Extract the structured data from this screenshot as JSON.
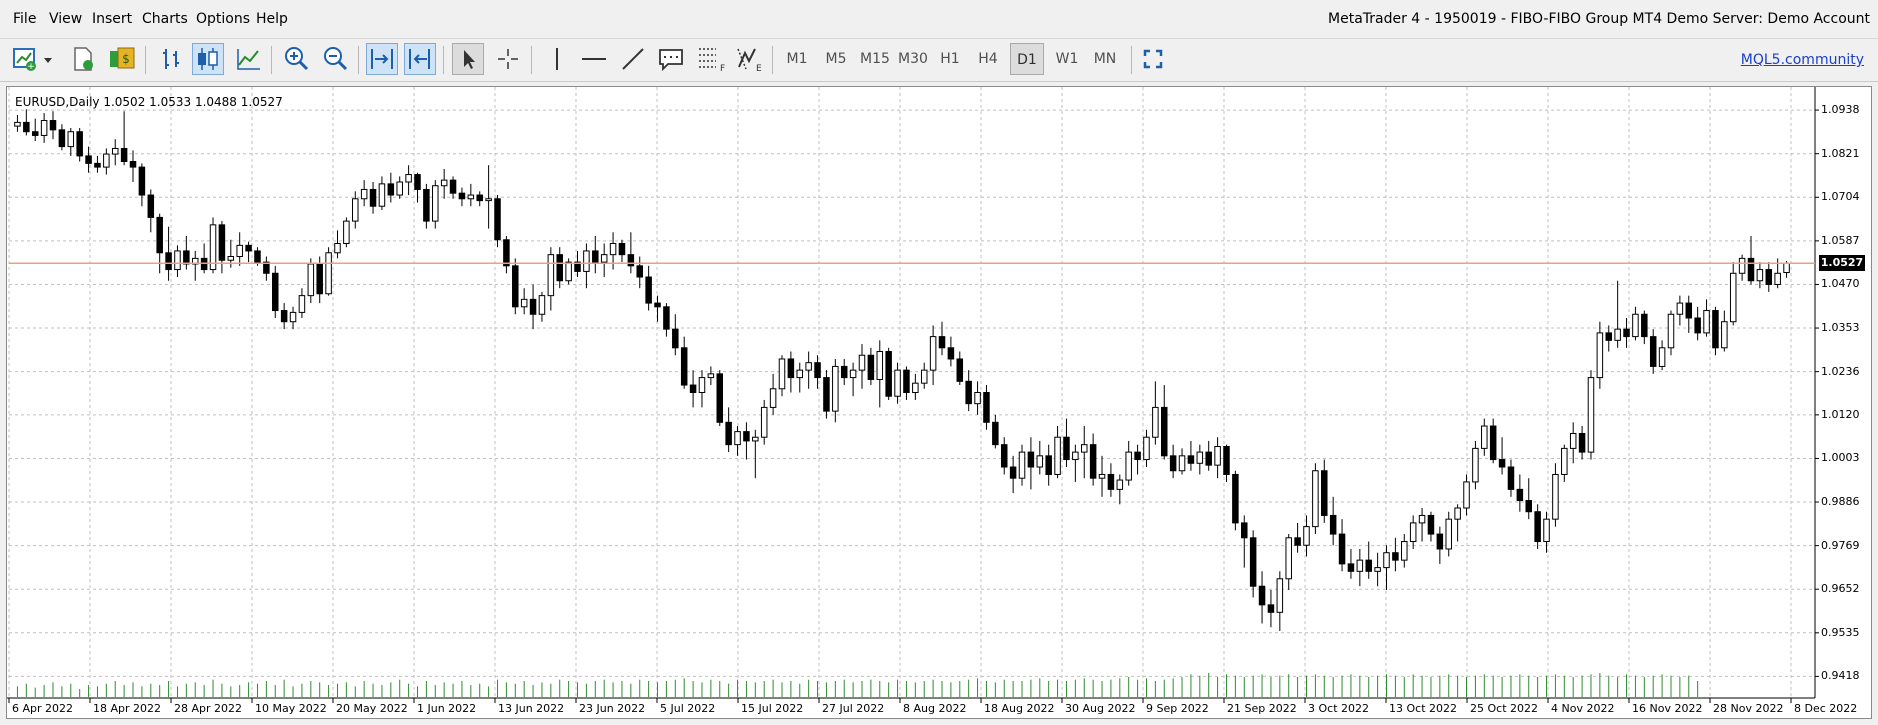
{
  "menu": {
    "items": [
      "File",
      "View",
      "Insert",
      "Charts",
      "Options",
      "Help"
    ],
    "title": "MetaTrader 4 - 1950019 - FIBO-FIBO Group MT4 Demo Server: Demo Account"
  },
  "toolbar": {
    "timeframes": [
      "M1",
      "M5",
      "M15",
      "M30",
      "H1",
      "H4",
      "D1",
      "W1",
      "MN"
    ],
    "active_timeframe": "D1",
    "link": "MQL5.community"
  },
  "chart": {
    "ticker": "EURUSD,Daily  1.0502 1.0533 1.0488 1.0527",
    "current_price": "1.0527",
    "price_levels": [
      "1.0938",
      "1.0821",
      "1.0704",
      "1.0587",
      "1.0470",
      "1.0353",
      "1.0236",
      "1.0120",
      "1.0003",
      "0.9886",
      "0.9769",
      "0.9652",
      "0.9535",
      "0.9418"
    ],
    "date_labels": [
      "6 Apr 2022",
      "18 Apr 2022",
      "28 Apr 2022",
      "10 May 2022",
      "20 May 2022",
      "1 Jun 2022",
      "13 Jun 2022",
      "23 Jun 2022",
      "5 Jul 2022",
      "15 Jul 2022",
      "27 Jul 2022",
      "8 Aug 2022",
      "18 Aug 2022",
      "30 Aug 2022",
      "9 Sep 2022",
      "21 Sep 2022",
      "3 Oct 2022",
      "13 Oct 2022",
      "25 Oct 2022",
      "4 Nov 2022",
      "16 Nov 2022",
      "28 Nov 2022",
      "8 Dec 2022"
    ],
    "colors": {
      "up": "#ffffff",
      "down": "#000000",
      "line_level": "#e8a088",
      "volume": "#2e8b2e",
      "grid": "#c0c0c0"
    }
  },
  "chart_data": {
    "type": "candlestick",
    "title": "EURUSD,Daily",
    "ylim": [
      0.936,
      1.1
    ],
    "last_bar": {
      "open": 1.0502,
      "high": 1.0533,
      "low": 1.0488,
      "close": 1.0527
    },
    "ohlc": [
      [
        1.0895,
        1.0925,
        1.088,
        1.0905
      ],
      [
        1.0905,
        1.094,
        1.087,
        1.088
      ],
      [
        1.088,
        1.0915,
        1.0855,
        1.087
      ],
      [
        1.087,
        1.093,
        1.085,
        1.091
      ],
      [
        1.091,
        1.0935,
        1.086,
        1.0885
      ],
      [
        1.0885,
        1.09,
        1.083,
        1.084
      ],
      [
        1.084,
        1.089,
        1.0815,
        1.088
      ],
      [
        1.088,
        1.089,
        1.08,
        1.0815
      ],
      [
        1.0815,
        1.084,
        1.077,
        1.0795
      ],
      [
        1.0795,
        1.0815,
        1.077,
        1.0785
      ],
      [
        1.0785,
        1.0835,
        1.0765,
        1.082
      ],
      [
        1.082,
        1.086,
        1.079,
        1.0835
      ],
      [
        1.0835,
        1.0935,
        1.079,
        1.08
      ],
      [
        1.08,
        1.083,
        1.0745,
        1.0785
      ],
      [
        1.0785,
        1.0795,
        1.068,
        1.071
      ],
      [
        1.071,
        1.0725,
        1.061,
        1.065
      ],
      [
        1.065,
        1.066,
        1.05,
        1.0555
      ],
      [
        1.0555,
        1.0625,
        1.048,
        1.051
      ],
      [
        1.051,
        1.0575,
        1.049,
        1.056
      ],
      [
        1.056,
        1.06,
        1.051,
        1.0525
      ],
      [
        1.0525,
        1.056,
        1.048,
        1.054
      ],
      [
        1.054,
        1.058,
        1.05,
        1.051
      ],
      [
        1.051,
        1.065,
        1.05,
        1.063
      ],
      [
        1.063,
        1.064,
        1.05,
        1.0535
      ],
      [
        1.0535,
        1.059,
        1.0515,
        1.0545
      ],
      [
        1.0545,
        1.061,
        1.052,
        1.0575
      ],
      [
        1.0575,
        1.0585,
        1.053,
        1.056
      ],
      [
        1.056,
        1.057,
        1.052,
        1.053
      ],
      [
        1.053,
        1.0545,
        1.048,
        1.05
      ],
      [
        1.05,
        1.052,
        1.038,
        1.04
      ],
      [
        1.04,
        1.042,
        1.035,
        1.037
      ],
      [
        1.037,
        1.041,
        1.035,
        1.0395
      ],
      [
        1.0395,
        1.046,
        1.038,
        1.044
      ],
      [
        1.044,
        1.054,
        1.042,
        1.0525
      ],
      [
        1.0525,
        1.0545,
        1.042,
        1.0445
      ],
      [
        1.0445,
        1.057,
        1.044,
        1.0555
      ],
      [
        1.0555,
        1.0615,
        1.054,
        1.058
      ],
      [
        1.058,
        1.065,
        1.057,
        1.064
      ],
      [
        1.064,
        1.072,
        1.062,
        1.07
      ],
      [
        1.07,
        1.075,
        1.068,
        1.0725
      ],
      [
        1.0725,
        1.0745,
        1.066,
        1.068
      ],
      [
        1.068,
        1.076,
        1.067,
        1.074
      ],
      [
        1.074,
        1.077,
        1.069,
        1.071
      ],
      [
        1.071,
        1.076,
        1.07,
        1.0745
      ],
      [
        1.0745,
        1.079,
        1.071,
        1.0765
      ],
      [
        1.0765,
        1.077,
        1.069,
        1.0725
      ],
      [
        1.0725,
        1.074,
        1.062,
        1.064
      ],
      [
        1.064,
        1.075,
        1.062,
        1.0735
      ],
      [
        1.0735,
        1.078,
        1.07,
        1.075
      ],
      [
        1.075,
        1.076,
        1.07,
        1.0715
      ],
      [
        1.0715,
        1.073,
        1.068,
        1.07
      ],
      [
        1.07,
        1.074,
        1.068,
        1.071
      ],
      [
        1.071,
        1.072,
        1.068,
        1.0695
      ],
      [
        1.0695,
        1.079,
        1.062,
        1.07
      ],
      [
        1.07,
        1.071,
        1.057,
        1.059
      ],
      [
        1.059,
        1.06,
        1.05,
        1.052
      ],
      [
        1.052,
        1.054,
        1.039,
        1.041
      ],
      [
        1.041,
        1.046,
        1.039,
        1.043
      ],
      [
        1.043,
        1.047,
        1.035,
        1.039
      ],
      [
        1.039,
        1.045,
        1.037,
        1.044
      ],
      [
        1.044,
        1.057,
        1.04,
        1.055
      ],
      [
        1.055,
        1.057,
        1.046,
        1.048
      ],
      [
        1.048,
        1.054,
        1.047,
        1.053
      ],
      [
        1.053,
        1.056,
        1.049,
        1.0505
      ],
      [
        1.0505,
        1.058,
        1.046,
        1.056
      ],
      [
        1.056,
        1.06,
        1.05,
        1.053
      ],
      [
        1.053,
        1.058,
        1.049,
        1.055
      ],
      [
        1.055,
        1.061,
        1.051,
        1.058
      ],
      [
        1.058,
        1.059,
        1.053,
        1.055
      ],
      [
        1.055,
        1.061,
        1.05,
        1.052
      ],
      [
        1.052,
        1.0545,
        1.046,
        1.049
      ],
      [
        1.049,
        1.052,
        1.04,
        1.042
      ],
      [
        1.042,
        1.044,
        1.037,
        1.041
      ],
      [
        1.041,
        1.042,
        1.033,
        1.035
      ],
      [
        1.035,
        1.039,
        1.028,
        1.03
      ],
      [
        1.03,
        1.033,
        1.019,
        1.02
      ],
      [
        1.02,
        1.024,
        1.014,
        1.018
      ],
      [
        1.018,
        1.024,
        1.014,
        1.022
      ],
      [
        1.022,
        1.025,
        1.02,
        1.023
      ],
      [
        1.023,
        1.024,
        1.009,
        1.01
      ],
      [
        1.01,
        1.014,
        1.002,
        1.004
      ],
      [
        1.004,
        1.009,
        1.001,
        1.0075
      ],
      [
        1.0075,
        1.01,
        1.0,
        1.005
      ],
      [
        1.005,
        1.008,
        0.995,
        1.006
      ],
      [
        1.006,
        1.016,
        1.004,
        1.014
      ],
      [
        1.014,
        1.023,
        1.012,
        1.019
      ],
      [
        1.019,
        1.028,
        1.017,
        1.027
      ],
      [
        1.027,
        1.029,
        1.018,
        1.022
      ],
      [
        1.022,
        1.026,
        1.018,
        1.024
      ],
      [
        1.024,
        1.029,
        1.019,
        1.026
      ],
      [
        1.026,
        1.028,
        1.019,
        1.022
      ],
      [
        1.022,
        1.024,
        1.011,
        1.013
      ],
      [
        1.013,
        1.027,
        1.01,
        1.025
      ],
      [
        1.025,
        1.027,
        1.02,
        1.022
      ],
      [
        1.022,
        1.026,
        1.017,
        1.024
      ],
      [
        1.024,
        1.031,
        1.019,
        1.028
      ],
      [
        1.028,
        1.03,
        1.02,
        1.0215
      ],
      [
        1.0215,
        1.032,
        1.014,
        1.029
      ],
      [
        1.029,
        1.03,
        1.016,
        1.017
      ],
      [
        1.017,
        1.026,
        1.015,
        1.024
      ],
      [
        1.024,
        1.025,
        1.016,
        1.018
      ],
      [
        1.018,
        1.023,
        1.016,
        1.0205
      ],
      [
        1.0205,
        1.026,
        1.019,
        1.024
      ],
      [
        1.024,
        1.036,
        1.02,
        1.033
      ],
      [
        1.033,
        1.037,
        1.028,
        1.03
      ],
      [
        1.03,
        1.033,
        1.025,
        1.027
      ],
      [
        1.027,
        1.029,
        1.02,
        1.021
      ],
      [
        1.021,
        1.024,
        1.013,
        1.015
      ],
      [
        1.015,
        1.021,
        1.012,
        1.018
      ],
      [
        1.018,
        1.02,
        1.008,
        1.01
      ],
      [
        1.01,
        1.012,
        1.003,
        1.004
      ],
      [
        1.004,
        1.006,
        0.996,
        0.998
      ],
      [
        0.998,
        1.001,
        0.991,
        0.995
      ],
      [
        0.995,
        1.004,
        0.993,
        1.002
      ],
      [
        1.002,
        1.006,
        0.992,
        0.998
      ],
      [
        0.998,
        1.005,
        0.996,
        1.001
      ],
      [
        1.001,
        1.004,
        0.993,
        0.996
      ],
      [
        0.996,
        1.009,
        0.995,
        1.006
      ],
      [
        1.006,
        1.011,
        0.998,
        1.0
      ],
      [
        1.0,
        1.004,
        0.994,
        1.002
      ],
      [
        1.002,
        1.009,
        0.995,
        1.004
      ],
      [
        1.004,
        1.007,
        0.993,
        0.995
      ],
      [
        0.995,
        1.001,
        0.99,
        0.996
      ],
      [
        0.996,
        0.999,
        0.99,
        0.992
      ],
      [
        0.992,
        0.996,
        0.988,
        0.9945
      ],
      [
        0.9945,
        1.005,
        0.993,
        1.002
      ],
      [
        1.002,
        1.004,
        0.996,
        1.0
      ],
      [
        1.0,
        1.008,
        0.998,
        1.006
      ],
      [
        1.006,
        1.021,
        1.004,
        1.014
      ],
      [
        1.014,
        1.02,
        1.0,
        1.001
      ],
      [
        1.001,
        1.004,
        0.995,
        0.997
      ],
      [
        0.997,
        1.003,
        0.996,
        1.001
      ],
      [
        1.001,
        1.005,
        0.997,
        0.999
      ],
      [
        0.999,
        1.004,
        0.996,
        1.002
      ],
      [
        1.002,
        1.005,
        0.997,
        0.9985
      ],
      [
        0.9985,
        1.006,
        0.995,
        1.0035
      ],
      [
        1.0035,
        1.004,
        0.994,
        0.996
      ],
      [
        0.996,
        0.997,
        0.981,
        0.983
      ],
      [
        0.983,
        0.985,
        0.971,
        0.979
      ],
      [
        0.979,
        0.981,
        0.963,
        0.966
      ],
      [
        0.966,
        0.97,
        0.956,
        0.961
      ],
      [
        0.961,
        0.965,
        0.955,
        0.959
      ],
      [
        0.959,
        0.97,
        0.954,
        0.968
      ],
      [
        0.968,
        0.98,
        0.965,
        0.979
      ],
      [
        0.979,
        0.983,
        0.975,
        0.977
      ],
      [
        0.977,
        0.985,
        0.974,
        0.982
      ],
      [
        0.982,
        0.999,
        0.98,
        0.997
      ],
      [
        0.997,
        1.0,
        0.983,
        0.985
      ],
      [
        0.985,
        0.99,
        0.977,
        0.98
      ],
      [
        0.98,
        0.984,
        0.97,
        0.972
      ],
      [
        0.972,
        0.976,
        0.968,
        0.97
      ],
      [
        0.97,
        0.976,
        0.966,
        0.973
      ],
      [
        0.973,
        0.978,
        0.968,
        0.97
      ],
      [
        0.97,
        0.975,
        0.966,
        0.971
      ],
      [
        0.971,
        0.977,
        0.965,
        0.975
      ],
      [
        0.975,
        0.979,
        0.97,
        0.973
      ],
      [
        0.973,
        0.98,
        0.971,
        0.978
      ],
      [
        0.978,
        0.985,
        0.976,
        0.983
      ],
      [
        0.983,
        0.987,
        0.978,
        0.985
      ],
      [
        0.985,
        0.986,
        0.978,
        0.98
      ],
      [
        0.98,
        0.982,
        0.972,
        0.976
      ],
      [
        0.976,
        0.986,
        0.974,
        0.984
      ],
      [
        0.984,
        0.988,
        0.978,
        0.987
      ],
      [
        0.987,
        0.996,
        0.985,
        0.994
      ],
      [
        0.994,
        1.005,
        0.992,
        1.003
      ],
      [
        1.003,
        1.011,
        1.001,
        1.009
      ],
      [
        1.009,
        1.011,
        0.999,
        1.0
      ],
      [
        1.0,
        1.006,
        0.996,
        0.998
      ],
      [
        0.998,
        1.0,
        0.99,
        0.992
      ],
      [
        0.992,
        0.996,
        0.986,
        0.989
      ],
      [
        0.989,
        0.995,
        0.984,
        0.986
      ],
      [
        0.986,
        0.988,
        0.976,
        0.978
      ],
      [
        0.978,
        0.986,
        0.975,
        0.984
      ],
      [
        0.984,
        0.999,
        0.982,
        0.996
      ],
      [
        0.996,
        1.004,
        0.994,
        1.003
      ],
      [
        1.003,
        1.01,
        0.999,
        1.007
      ],
      [
        1.007,
        1.009,
        1.0,
        1.002
      ],
      [
        1.002,
        1.024,
        1.0,
        1.022
      ],
      [
        1.022,
        1.037,
        1.019,
        1.034
      ],
      [
        1.034,
        1.036,
        1.029,
        1.032
      ],
      [
        1.032,
        1.048,
        1.03,
        1.035
      ],
      [
        1.035,
        1.038,
        1.03,
        1.033
      ],
      [
        1.033,
        1.041,
        1.032,
        1.039
      ],
      [
        1.039,
        1.04,
        1.031,
        1.033
      ],
      [
        1.033,
        1.035,
        1.023,
        1.025
      ],
      [
        1.025,
        1.032,
        1.024,
        1.03
      ],
      [
        1.03,
        1.04,
        1.028,
        1.039
      ],
      [
        1.039,
        1.044,
        1.036,
        1.042
      ],
      [
        1.042,
        1.044,
        1.034,
        1.038
      ],
      [
        1.038,
        1.041,
        1.032,
        1.034
      ],
      [
        1.034,
        1.043,
        1.033,
        1.04
      ],
      [
        1.04,
        1.041,
        1.028,
        1.03
      ],
      [
        1.03,
        1.04,
        1.029,
        1.037
      ],
      [
        1.037,
        1.053,
        1.036,
        1.05
      ],
      [
        1.05,
        1.055,
        1.048,
        1.054
      ],
      [
        1.054,
        1.06,
        1.047,
        1.048
      ],
      [
        1.048,
        1.053,
        1.046,
        1.051
      ],
      [
        1.051,
        1.053,
        1.045,
        1.047
      ],
      [
        1.047,
        1.054,
        1.046,
        1.05
      ],
      [
        1.0502,
        1.0533,
        1.0488,
        1.0527
      ]
    ],
    "volume": [
      8,
      10,
      7,
      9,
      11,
      8,
      10,
      6,
      9,
      8,
      10,
      12,
      9,
      11,
      8,
      10,
      9,
      12,
      8,
      10,
      11,
      9,
      13,
      10,
      8,
      9,
      11,
      10,
      12,
      9,
      13,
      8,
      10,
      12,
      11,
      9,
      10,
      11,
      8,
      12,
      10,
      9,
      11,
      13,
      10,
      8,
      12,
      9,
      11,
      10,
      12,
      9,
      10,
      8,
      13,
      11,
      10,
      12,
      9,
      11,
      10,
      13,
      12,
      11,
      10,
      12,
      13,
      11,
      12,
      10,
      13,
      12,
      11,
      12,
      13,
      14,
      12,
      11,
      13,
      12,
      10,
      13,
      12,
      11,
      12,
      13,
      11,
      12,
      10,
      13,
      12,
      11,
      12,
      13,
      11,
      12,
      13,
      12,
      11,
      13,
      12,
      11,
      12,
      13,
      12,
      11,
      12,
      13,
      14,
      12,
      11,
      13,
      12,
      12,
      13,
      14,
      12,
      13,
      12,
      13,
      14,
      13,
      12,
      13,
      14,
      15,
      13,
      14,
      12,
      13,
      14,
      15,
      17,
      16,
      18,
      15,
      17,
      16,
      15,
      16,
      17,
      15,
      16,
      17,
      15,
      16,
      17,
      16,
      15,
      16,
      17,
      16,
      15,
      16,
      17,
      16,
      15,
      17,
      16,
      15,
      16,
      17,
      16,
      15,
      16,
      17,
      16,
      15,
      16,
      17,
      16,
      15,
      16,
      17,
      16,
      15,
      16,
      17,
      18,
      16,
      15,
      17,
      16,
      15,
      16,
      17,
      16,
      15,
      16,
      12
    ]
  }
}
